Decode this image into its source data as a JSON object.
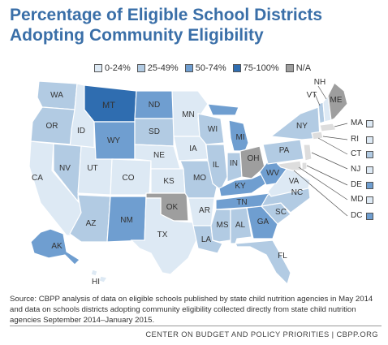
{
  "title": "Percentage of Eligible School Districts Adopting Community Eligibility",
  "colors": {
    "c0": "#dde9f4",
    "c1": "#b2cbe3",
    "c2": "#6f9ed0",
    "c3": "#2f6db0",
    "na": "#9e9e9e"
  },
  "legend": [
    {
      "label": "0-24%",
      "color": "#dde9f4"
    },
    {
      "label": "25-49%",
      "color": "#b2cbe3"
    },
    {
      "label": "50-74%",
      "color": "#6f9ed0"
    },
    {
      "label": "75-100%",
      "color": "#2f6db0"
    },
    {
      "label": "N/A",
      "color": "#9e9e9e"
    }
  ],
  "states": {
    "WA": "c1",
    "OR": "c1",
    "CA": "c0",
    "ID": "c0",
    "NV": "c1",
    "UT": "c0",
    "AZ": "c1",
    "MT": "c3",
    "WY": "c2",
    "CO": "c0",
    "NM": "c2",
    "ND": "c2",
    "SD": "c1",
    "NE": "c0",
    "KS": "c0",
    "OK": "na",
    "TX": "c0",
    "MN": "c0",
    "IA": "c0",
    "MO": "c1",
    "AR": "c0",
    "LA": "c1",
    "WI": "c1",
    "IL": "c1",
    "MI": "c2",
    "IN": "c1",
    "OH": "na",
    "KY": "c2",
    "TN": "c2",
    "MS": "c1",
    "AL": "c1",
    "GA": "c2",
    "FL": "c1",
    "SC": "c1",
    "NC": "c1",
    "VA": "c0",
    "WV": "c2",
    "PA": "c1",
    "NY": "c1",
    "VT": "c1",
    "NH": "c0",
    "ME": "na",
    "AK": "c2",
    "HI": "c0"
  },
  "east_coast": [
    {
      "abbr": "MA",
      "color": "#dde9f4"
    },
    {
      "abbr": "RI",
      "color": "#dde9f4"
    },
    {
      "abbr": "CT",
      "color": "#b2cbe3"
    },
    {
      "abbr": "NJ",
      "color": "#dde9f4"
    },
    {
      "abbr": "DE",
      "color": "#6f9ed0"
    },
    {
      "abbr": "MD",
      "color": "#dde9f4"
    },
    {
      "abbr": "DC",
      "color": "#6f9ed0"
    }
  ],
  "source": "Source: CBPP analysis of data on eligible schools published by state child nutrition agencies in May 2014 and data on schools districts adopting community eligibility collected directly from state child nutrition agencies September 2014–January 2015.",
  "credit": "CENTER ON BUDGET AND POLICY PRIORITIES | CBPP.ORG"
}
